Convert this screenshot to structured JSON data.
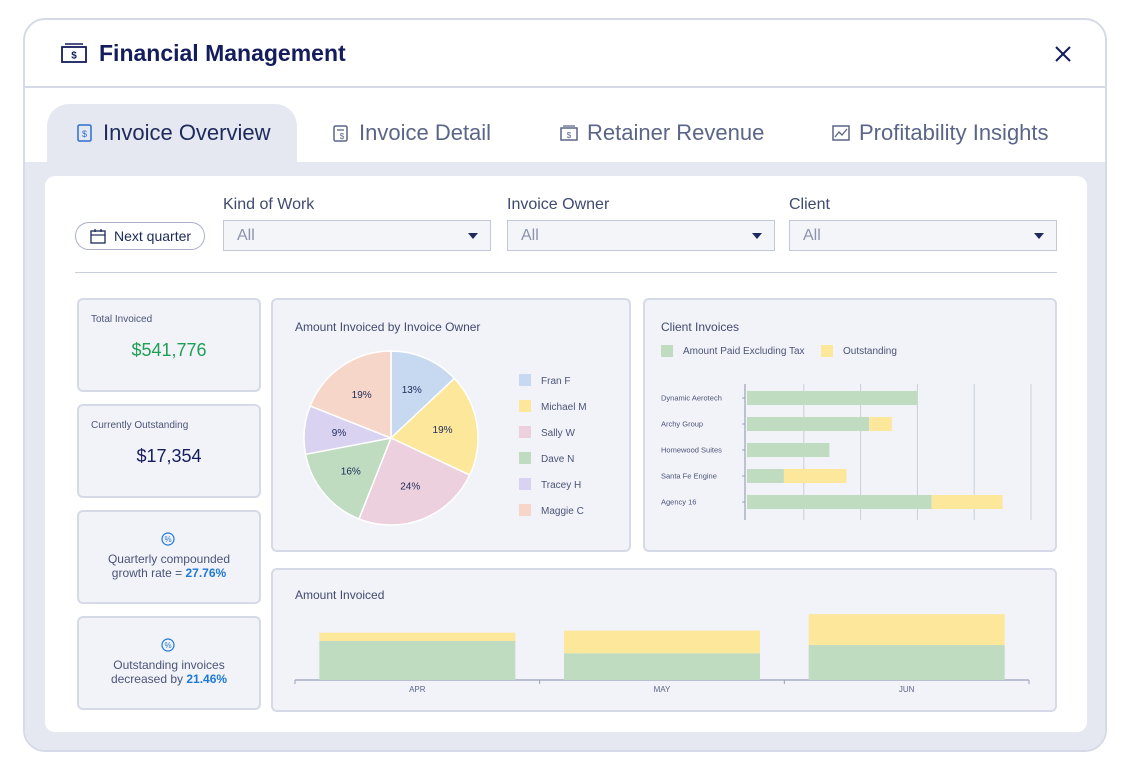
{
  "window": {
    "title": "Financial Management"
  },
  "tabs": [
    {
      "label": "Invoice Overview",
      "icon": "invoice-icon",
      "active": true
    },
    {
      "label": "Invoice Detail",
      "icon": "invoice-detail-icon",
      "active": false
    },
    {
      "label": "Retainer Revenue",
      "icon": "retainer-icon",
      "active": false
    },
    {
      "label": "Profitability Insights",
      "icon": "chart-icon",
      "active": false
    }
  ],
  "filters": {
    "date_button": "Next quarter",
    "kind_of_work": {
      "label": "Kind of Work",
      "value": "All"
    },
    "invoice_owner": {
      "label": "Invoice Owner",
      "value": "All"
    },
    "client": {
      "label": "Client",
      "value": "All"
    }
  },
  "kpis": {
    "total_invoiced": {
      "label": "Total Invoiced",
      "value": "$541,776"
    },
    "currently_outstanding": {
      "label": "Currently Outstanding",
      "value": "$17,354"
    },
    "growth": {
      "line1": "Quarterly compounded",
      "line2_prefix": "growth rate = ",
      "pct": "27.76%"
    },
    "outstanding_change": {
      "line1": "Outstanding invoices",
      "line2_prefix": "decreased by ",
      "pct": "21.46%"
    }
  },
  "colors": {
    "green": "#bfdcc1",
    "yellow": "#fce79a",
    "blue": "#c7d9f0",
    "pink": "#edd0de",
    "purple": "#d9d2f0",
    "peach": "#f6d6c8",
    "accent_green": "#1f9f55",
    "accent_blue": "#1e78d6"
  },
  "chart_data": [
    {
      "type": "pie",
      "title": "Amount Invoiced by Invoice Owner",
      "slices": [
        {
          "name": "Fran F",
          "value": 13,
          "label": "13%",
          "color": "#c7d9f0"
        },
        {
          "name": "Michael M",
          "value": 19,
          "label": "19%",
          "color": "#fce79a"
        },
        {
          "name": "Sally W",
          "value": 24,
          "label": "24%",
          "color": "#edd0de"
        },
        {
          "name": "Dave N",
          "value": 16,
          "label": "16%",
          "color": "#bfdcc1"
        },
        {
          "name": "Tracey H",
          "value": 9,
          "label": "9%",
          "color": "#d9d2f0"
        },
        {
          "name": "Maggie C",
          "value": 19,
          "label": "19%",
          "color": "#f6d6c8"
        }
      ]
    },
    {
      "type": "bar",
      "orientation": "horizontal",
      "stacked": true,
      "title": "Client Invoices",
      "categories": [
        "Dynamic Aerotech",
        "Archy Group",
        "Homewood Suites",
        "Santa Fe Engine",
        "Agency 16"
      ],
      "series": [
        {
          "name": "Amount Paid Excluding Tax",
          "color": "#bfdcc1",
          "values": [
            60,
            43,
            29,
            13,
            65
          ]
        },
        {
          "name": "Outstanding",
          "color": "#fce79a",
          "values": [
            0,
            8,
            0,
            22,
            25
          ]
        }
      ],
      "xlim": [
        0,
        100
      ],
      "grid": true,
      "legend": "top-left"
    },
    {
      "type": "bar",
      "stacked": true,
      "title": "Amount Invoiced",
      "categories": [
        "APR",
        "MAY",
        "JUN"
      ],
      "series": [
        {
          "name": "Paid",
          "color": "#bfdcc1",
          "values": [
            38,
            26,
            34
          ]
        },
        {
          "name": "Outstanding",
          "color": "#fce79a",
          "values": [
            8,
            22,
            30
          ]
        }
      ],
      "ylim": [
        0,
        70
      ],
      "grid": false
    }
  ]
}
